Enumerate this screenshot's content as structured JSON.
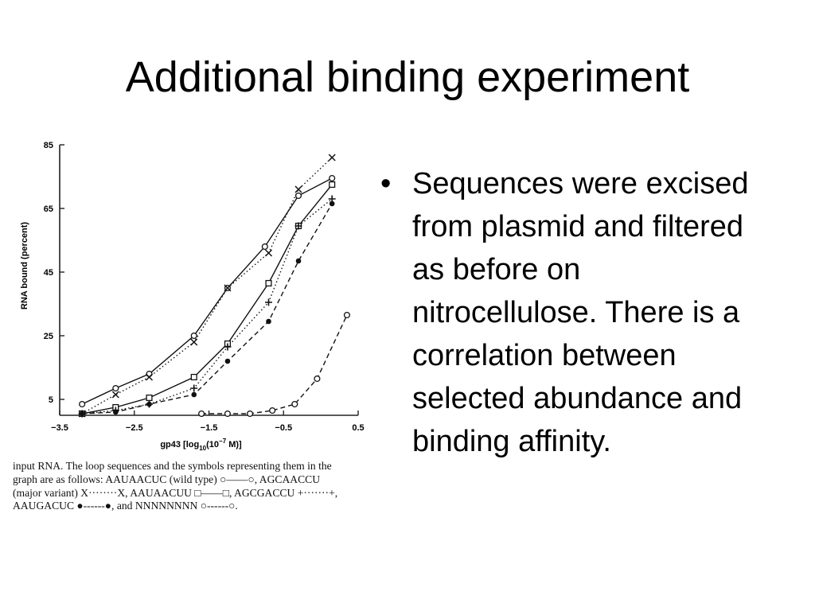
{
  "slide": {
    "title": "Additional binding experiment"
  },
  "bullets": [
    {
      "text": "Sequences were excised from plasmid and filtered as before on nitrocellulose. There is a correlation between selected abundance and binding affinity."
    }
  ],
  "bullet_glyph": "•",
  "caption": {
    "lines": [
      "input RNA. The loop sequences and the symbols representing them in the",
      "graph are as follows: AAUAACUC (wild type) ○——○, AGCAACCU",
      "(major variant) X········X, AAUAACUU □——□, AGCGACCU +·······+,",
      "AAUGACUC ●------●, and NNNNNNNN ○------○."
    ]
  },
  "chart_data": {
    "type": "line",
    "xlabel_parts": [
      "gp43 [log",
      "10",
      "(10",
      "−7",
      " M)]"
    ],
    "ylabel": "RNA bound (percent)",
    "xlim": [
      -3.5,
      0.5
    ],
    "ylim": [
      0,
      85
    ],
    "x_ticks": [
      -3.5,
      -2.5,
      -1.5,
      -0.5,
      0.5
    ],
    "x_tick_labels": [
      "−3.5",
      "−2.5",
      "−1.5",
      "−0.5",
      "0.5"
    ],
    "y_ticks": [
      5,
      25,
      45,
      65,
      85
    ],
    "y_tick_labels": [
      "5",
      "25",
      "45",
      "65",
      "85"
    ],
    "grid": false,
    "series": [
      {
        "name": "AAUAACUC (wild type)",
        "marker": "open-circle",
        "line": "solid",
        "points": [
          [
            -3.2,
            3.5
          ],
          [
            -2.75,
            8.5
          ],
          [
            -2.3,
            13
          ],
          [
            -1.7,
            25
          ],
          [
            -1.25,
            40
          ],
          [
            -0.75,
            53
          ],
          [
            -0.3,
            69
          ],
          [
            0.15,
            74.5
          ]
        ]
      },
      {
        "name": "AGCAACCU (major variant)",
        "marker": "x",
        "line": "dotted",
        "points": [
          [
            -3.2,
            0.5
          ],
          [
            -2.75,
            6.5
          ],
          [
            -2.3,
            12
          ],
          [
            -1.7,
            23
          ],
          [
            -1.25,
            40
          ],
          [
            -0.7,
            51
          ],
          [
            -0.3,
            71
          ],
          [
            0.15,
            81
          ]
        ]
      },
      {
        "name": "AAUAACUU",
        "marker": "open-square",
        "line": "solid",
        "points": [
          [
            -3.2,
            0.5
          ],
          [
            -2.75,
            2.5
          ],
          [
            -2.3,
            5.5
          ],
          [
            -1.7,
            12
          ],
          [
            -1.25,
            22.5
          ],
          [
            -0.7,
            41.5
          ],
          [
            -0.3,
            59.5
          ],
          [
            0.15,
            72.5
          ]
        ]
      },
      {
        "name": "AGCGACCU",
        "marker": "plus",
        "line": "dotted",
        "points": [
          [
            -3.2,
            0.5
          ],
          [
            -2.75,
            1.5
          ],
          [
            -2.3,
            3.5
          ],
          [
            -1.7,
            8.5
          ],
          [
            -1.25,
            21.5
          ],
          [
            -0.7,
            35.5
          ],
          [
            -0.3,
            59.5
          ],
          [
            0.15,
            68
          ]
        ]
      },
      {
        "name": "AAUGACUC",
        "marker": "filled-circle",
        "line": "dashed",
        "points": [
          [
            -3.2,
            0.5
          ],
          [
            -2.75,
            1
          ],
          [
            -2.3,
            3.5
          ],
          [
            -1.7,
            6.5
          ],
          [
            -1.25,
            17
          ],
          [
            -0.7,
            29.5
          ],
          [
            -0.3,
            48.5
          ],
          [
            0.15,
            66.5
          ]
        ]
      },
      {
        "name": "NNNNNNNN",
        "marker": "open-circle",
        "line": "dashed",
        "points": [
          [
            -1.6,
            0.5
          ],
          [
            -1.25,
            0.5
          ],
          [
            -0.95,
            0.5
          ],
          [
            -0.65,
            1.5
          ],
          [
            -0.35,
            3.5
          ],
          [
            -0.05,
            11.5
          ],
          [
            0.35,
            31.5
          ]
        ]
      }
    ]
  }
}
